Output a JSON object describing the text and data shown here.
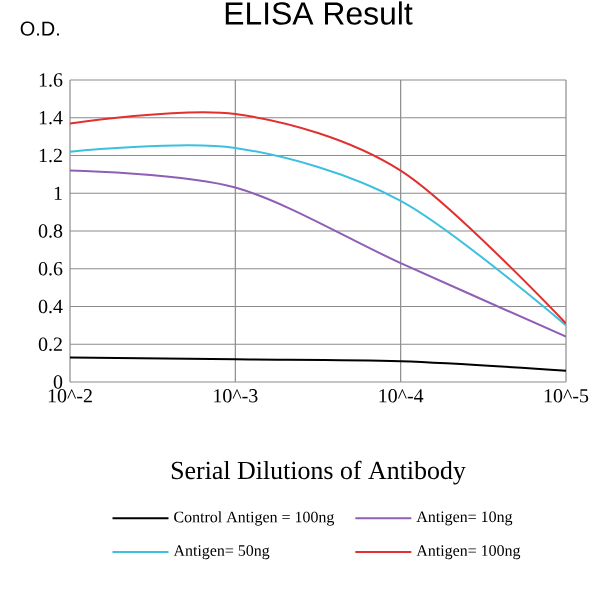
{
  "chart_data": {
    "type": "line",
    "title": "ELISA Result",
    "ylabel": "O.D.",
    "xlabel": "Serial Dilutions of Antibody",
    "categories": [
      "10^-2",
      "10^-3",
      "10^-4",
      "10^-5"
    ],
    "series": [
      {
        "name": "Control Antigen = 100ng",
        "color": "#000000",
        "values": [
          0.13,
          0.12,
          0.11,
          0.06
        ]
      },
      {
        "name": "Antigen= 10ng",
        "color": "#8e5fb5",
        "values": [
          1.12,
          1.03,
          0.63,
          0.24
        ]
      },
      {
        "name": "Antigen= 50ng",
        "color": "#3cc0e0",
        "values": [
          1.22,
          1.24,
          0.96,
          0.3
        ]
      },
      {
        "name": "Antigen= 100ng",
        "color": "#e03030",
        "values": [
          1.37,
          1.42,
          1.12,
          0.31
        ]
      }
    ],
    "ylim": [
      0,
      1.6
    ],
    "yticks": [
      0,
      0.2,
      0.4,
      0.6,
      0.8,
      1,
      1.2,
      1.4,
      1.6
    ],
    "grid": true,
    "legend": "bottom"
  }
}
